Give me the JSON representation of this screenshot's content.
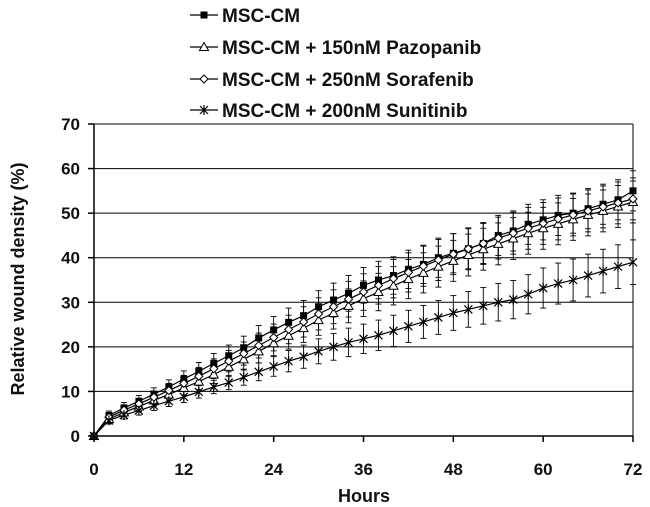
{
  "chart_data": {
    "type": "line",
    "xlabel": "Hours",
    "ylabel": "Relative wound density (%)",
    "xlim": [
      0,
      72
    ],
    "ylim": [
      0,
      70
    ],
    "xticks": [
      0,
      12,
      24,
      36,
      48,
      60,
      72
    ],
    "yticks": [
      0,
      10,
      20,
      30,
      40,
      50,
      60,
      70
    ],
    "grid": "horizontal",
    "legend_position": "top",
    "x": [
      0,
      2,
      4,
      6,
      8,
      10,
      12,
      14,
      16,
      18,
      20,
      22,
      24,
      26,
      28,
      30,
      32,
      34,
      36,
      38,
      40,
      42,
      44,
      46,
      48,
      50,
      52,
      54,
      56,
      58,
      60,
      62,
      64,
      66,
      68,
      70,
      72
    ],
    "series": [
      {
        "name": "MSC-CM",
        "marker": "filled-square",
        "values": [
          0,
          4.6,
          6.3,
          7.8,
          9.4,
          11,
          12.8,
          14.5,
          16.3,
          18,
          19.8,
          22,
          23.8,
          25.5,
          27,
          29,
          30.5,
          32,
          33.8,
          35,
          36,
          37.4,
          38.5,
          40,
          41,
          42,
          43.2,
          45,
          46,
          47.5,
          48.5,
          49.5,
          50,
          51,
          52,
          53,
          55
        ],
        "errors": [
          0,
          1,
          1.2,
          1.3,
          1.4,
          1.6,
          1.8,
          2,
          2.2,
          2.4,
          2.6,
          2.8,
          3,
          3.2,
          3.4,
          3.6,
          3.8,
          4,
          4,
          4.2,
          4.2,
          4.3,
          4.3,
          4.4,
          4.4,
          4.5,
          4.5,
          4.5,
          4.5,
          4.5,
          4.5,
          4.5,
          4.5,
          4.5,
          4.5,
          4.5,
          4.5
        ]
      },
      {
        "name": "MSC-CM + 150nM Pazopanib",
        "marker": "open-triangle",
        "values": [
          0,
          3.8,
          5.3,
          6.6,
          8,
          9.3,
          10.8,
          12.2,
          13.8,
          15.5,
          17.2,
          19,
          20.8,
          22.5,
          24.2,
          26,
          27.6,
          29.2,
          30.8,
          32.3,
          33.7,
          35.2,
          36.6,
          38,
          39.3,
          40.6,
          41.9,
          43.1,
          44.3,
          45.5,
          46.6,
          47.6,
          48.6,
          49.6,
          50.5,
          51.5,
          52.5
        ],
        "errors": [
          0,
          0.9,
          1,
          1.1,
          1.3,
          1.4,
          1.6,
          1.8,
          2,
          2.2,
          2.4,
          2.6,
          2.8,
          3,
          3.2,
          3.4,
          3.6,
          3.8,
          4,
          4.2,
          4.3,
          4.4,
          4.5,
          4.6,
          4.6,
          4.7,
          4.7,
          4.7,
          4.7,
          4.7,
          4.7,
          4.7,
          4.7,
          4.7,
          4.7,
          4.7,
          4.7
        ]
      },
      {
        "name": "MSC-CM + 250nM Sorafenib",
        "marker": "open-diamond",
        "values": [
          0,
          4.2,
          5.8,
          7.2,
          8.7,
          10.2,
          11.8,
          13.4,
          15.1,
          16.8,
          18.5,
          20.3,
          22.1,
          23.9,
          25.6,
          27.4,
          29,
          30.7,
          32.3,
          33.8,
          35.3,
          36.7,
          38.1,
          39.5,
          40.8,
          42,
          43.2,
          44.4,
          45.5,
          46.6,
          47.7,
          48.7,
          49.6,
          50.5,
          51.4,
          52.3,
          53.2
        ],
        "errors": [
          0,
          0.9,
          1.1,
          1.2,
          1.4,
          1.6,
          1.8,
          2,
          2.2,
          2.4,
          2.6,
          2.8,
          3,
          3.2,
          3.4,
          3.6,
          3.8,
          4,
          4.1,
          4.2,
          4.3,
          4.4,
          4.5,
          4.6,
          4.6,
          4.7,
          4.7,
          4.7,
          4.7,
          4.7,
          4.7,
          4.7,
          4.7,
          4.7,
          4.7,
          4.7,
          4.7
        ]
      },
      {
        "name": "MSC-CM + 200nM Sunitinib",
        "marker": "asterisk",
        "values": [
          0,
          3.5,
          4.7,
          5.7,
          6.8,
          7.8,
          8.8,
          9.9,
          11,
          12,
          13.2,
          14.4,
          15.6,
          16.8,
          17.8,
          19,
          20,
          21,
          21.8,
          22.6,
          23.6,
          24.6,
          25.6,
          26.6,
          27.6,
          28.4,
          29.2,
          30,
          30.6,
          31.8,
          33.2,
          34.2,
          35,
          36,
          37,
          38,
          39
        ],
        "errors": [
          0,
          0.8,
          0.9,
          1,
          1.1,
          1.2,
          1.3,
          1.4,
          1.5,
          1.6,
          1.8,
          2,
          2.2,
          2.4,
          2.6,
          2.8,
          3,
          3.2,
          3.3,
          3.4,
          3.5,
          3.6,
          3.7,
          3.8,
          3.9,
          4,
          4.1,
          4.2,
          4.3,
          4.4,
          4.5,
          4.6,
          4.7,
          4.8,
          4.9,
          4.9,
          5
        ]
      }
    ]
  }
}
